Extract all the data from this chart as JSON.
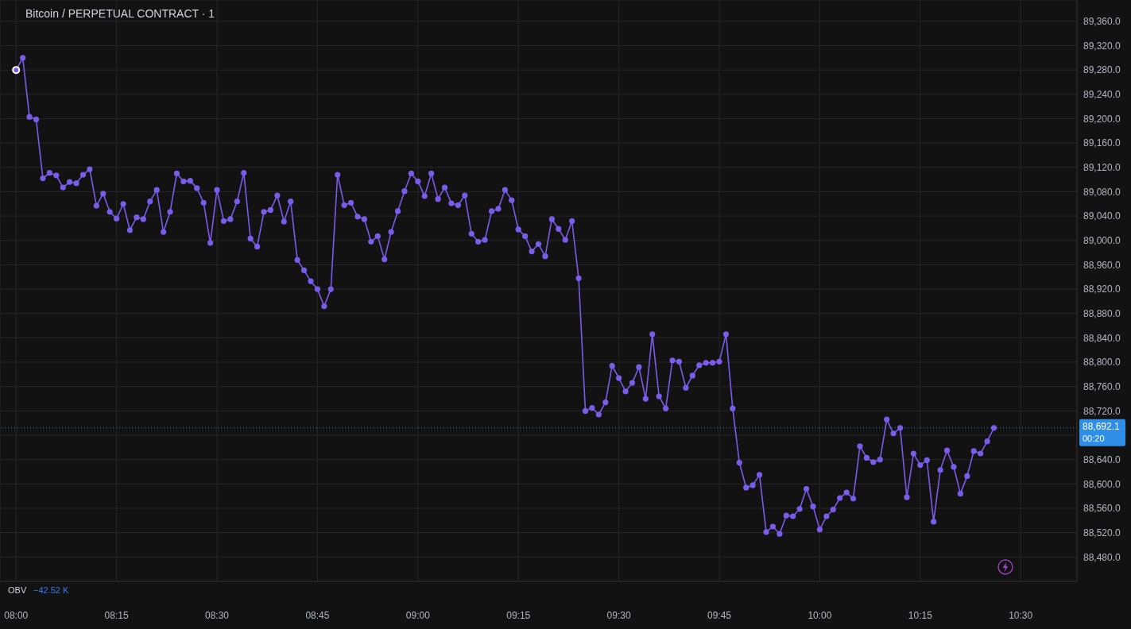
{
  "chart_data": {
    "type": "line",
    "title": "Bitcoin / PERPETUAL CONTRACT · 1",
    "x": [
      8,
      8.0167,
      8.0333,
      8.05,
      8.0667,
      8.0833,
      8.1,
      8.1167,
      8.1333,
      8.15,
      8.1667,
      8.1833,
      8.2,
      8.2167,
      8.2333,
      8.25,
      8.2667,
      8.2833,
      8.3,
      8.3167,
      8.3333,
      8.35,
      8.3667,
      8.3833,
      8.4,
      8.4167,
      8.4333,
      8.45,
      8.4667,
      8.4833,
      8.5,
      8.5167,
      8.5333,
      8.55,
      8.5667,
      8.5833,
      8.6,
      8.6167,
      8.6333,
      8.65,
      8.6667,
      8.6833,
      8.7,
      8.7167,
      8.7333,
      8.75,
      8.7667,
      8.7833,
      8.8,
      8.8167,
      8.8333,
      8.85,
      8.8667,
      8.8833,
      8.9,
      8.9167,
      8.9333,
      8.95,
      8.9667,
      8.9833,
      9,
      9.0167,
      9.0333,
      9.05,
      9.0667,
      9.0833,
      9.1,
      9.1167,
      9.1333,
      9.15,
      9.1667,
      9.1833,
      9.2,
      9.2167,
      9.2333,
      9.25,
      9.2667,
      9.2833,
      9.3,
      9.3167,
      9.3333,
      9.35,
      9.3667,
      9.3833,
      9.4,
      9.4167,
      9.4333,
      9.45,
      9.4667,
      9.4833,
      9.5,
      9.5167,
      9.5333,
      9.55,
      9.5667,
      9.5833,
      9.6,
      9.6167,
      9.6333,
      9.65,
      9.6667,
      9.6833,
      9.7,
      9.7167,
      9.7333,
      9.75,
      9.7667,
      9.7833,
      9.8,
      9.8167,
      9.8333,
      9.85,
      9.8667,
      9.8833,
      9.9,
      9.9167,
      9.9333,
      9.95,
      9.9667,
      9.9833,
      10,
      10.0167,
      10.0333,
      10.05,
      10.0667,
      10.0833,
      10.1,
      10.1167,
      10.1333,
      10.15,
      10.1667,
      10.1833,
      10.2,
      10.2167,
      10.2333,
      10.25,
      10.2667,
      10.2833,
      10.3,
      10.3167,
      10.3333,
      10.35,
      10.3667,
      10.3833,
      10.4,
      10.4167,
      10.4333
    ],
    "series": [
      {
        "color": "#7a5cea",
        "values": [
          89280,
          89300,
          89203,
          89199,
          89102,
          89111,
          89107,
          89087,
          89096,
          89094,
          89108,
          89117,
          89057,
          89077,
          89047,
          89036,
          89060,
          89017,
          89038,
          89035,
          89064,
          89083,
          89014,
          89047,
          89110,
          89097,
          89098,
          89086,
          89062,
          88996,
          89083,
          89032,
          89035,
          89064,
          89111,
          89003,
          88990,
          89047,
          89050,
          89074,
          89031,
          89064,
          88968,
          88951,
          88933,
          88920,
          88892,
          88920,
          89108,
          89058,
          89062,
          89039,
          89035,
          88998,
          89007,
          88969,
          89014,
          89048,
          89081,
          89110,
          89097,
          89073,
          89110,
          89068,
          89087,
          89061,
          89058,
          89074,
          89011,
          88998,
          89001,
          89048,
          89052,
          89083,
          89066,
          89018,
          89007,
          88982,
          88994,
          88974,
          89035,
          89019,
          89001,
          89032,
          88938,
          88720,
          88725,
          88714,
          88734,
          88794,
          88774,
          88752,
          88766,
          88792,
          88740,
          88846,
          88744,
          88724,
          88803,
          88801,
          88758,
          88778,
          88795,
          88799,
          88799,
          88801,
          88846,
          88724,
          88635,
          88594,
          88598,
          88615,
          88521,
          88530,
          88518,
          88548,
          88547,
          88559,
          88592,
          88563,
          88525,
          88547,
          88558,
          88577,
          88586,
          88576,
          88662,
          88643,
          88636,
          88640,
          88706,
          88683,
          88692,
          88578,
          88650,
          88631,
          88639,
          88538,
          88623,
          88655,
          88628,
          88584,
          88613,
          88654,
          88650,
          88670,
          88692
        ]
      }
    ],
    "xlim": [
      7.96,
      10.64
    ],
    "xticks": [
      {
        "value": 8,
        "label": "08:00"
      },
      {
        "value": 8.25,
        "label": "08:15"
      },
      {
        "value": 8.5,
        "label": "08:30"
      },
      {
        "value": 8.75,
        "label": "08:45"
      },
      {
        "value": 9,
        "label": "09:00"
      },
      {
        "value": 9.25,
        "label": "09:15"
      },
      {
        "value": 9.5,
        "label": "09:30"
      },
      {
        "value": 9.75,
        "label": "09:45"
      },
      {
        "value": 10,
        "label": "10:00"
      },
      {
        "value": 10.25,
        "label": "10:15"
      },
      {
        "value": 10.5,
        "label": "10:30"
      }
    ],
    "ylim": [
      88440,
      89395
    ],
    "yticks": [
      {
        "value": 88480,
        "label": "88,480.0"
      },
      {
        "value": 88520,
        "label": "88,520.0"
      },
      {
        "value": 88560,
        "label": "88,560.0"
      },
      {
        "value": 88600,
        "label": "88,600.0"
      },
      {
        "value": 88640,
        "label": "88,640.0"
      },
      {
        "value": 88680,
        "label": null
      },
      {
        "value": 88720,
        "label": "88,720.0"
      },
      {
        "value": 88760,
        "label": "88,760.0"
      },
      {
        "value": 88800,
        "label": "88,800.0"
      },
      {
        "value": 88840,
        "label": "88,840.0"
      },
      {
        "value": 88880,
        "label": "88,880.0"
      },
      {
        "value": 88920,
        "label": "88,920.0"
      },
      {
        "value": 88960,
        "label": "88,960.0"
      },
      {
        "value": 89000,
        "label": "89,000.0"
      },
      {
        "value": 89040,
        "label": "89,040.0"
      },
      {
        "value": 89080,
        "label": "89,080.0"
      },
      {
        "value": 89120,
        "label": "89,120.0"
      },
      {
        "value": 89160,
        "label": "89,160.0"
      },
      {
        "value": 89200,
        "label": "89,200.0"
      },
      {
        "value": 89240,
        "label": "89,240.0"
      },
      {
        "value": 89280,
        "label": "89,280.0"
      },
      {
        "value": 89320,
        "label": "89,320.0"
      },
      {
        "value": 89360,
        "label": "89,360.0"
      }
    ],
    "ref_lines": [
      {
        "axis": "y",
        "value": 88692.1,
        "label": "88,692.1",
        "color": "#2f8ee8",
        "line_style": "dotted"
      }
    ],
    "annotations": [
      "00:20",
      "OBV",
      "−42.52 K"
    ],
    "grid": true,
    "marker": "circle",
    "line_style": "solid"
  }
}
